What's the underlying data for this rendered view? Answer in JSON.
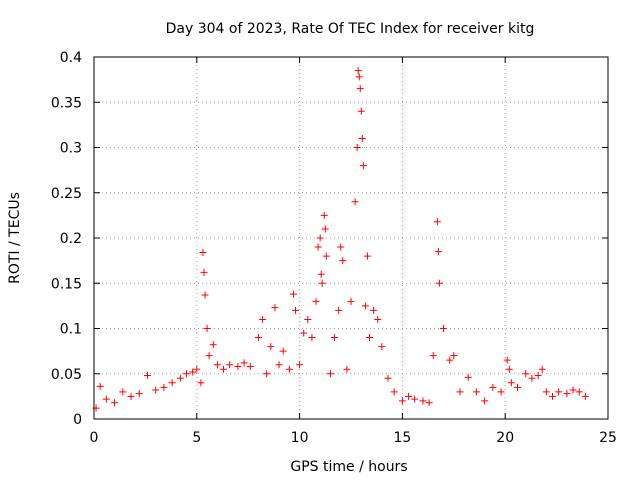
{
  "chart_data": {
    "type": "scatter",
    "title": "Day 304 of 2023, Rate Of TEC Index for receiver kitg",
    "xlabel": "GPS time / hours",
    "ylabel": "ROTI / TECUs",
    "xlim": [
      0,
      25
    ],
    "ylim": [
      0,
      0.4
    ],
    "grid": true,
    "marker": "plus",
    "xticks": [
      "0",
      "5",
      "10",
      "15",
      "20",
      "25"
    ],
    "yticks": [
      "0",
      "0.05",
      "0.1",
      "0.15",
      "0.2",
      "0.25",
      "0.3",
      "0.35",
      "0.4"
    ],
    "colors": {
      "series": "#ff0000",
      "grid": "#a0a0a0",
      "axes": "#000000"
    },
    "series": [
      {
        "name": "ROTI",
        "x": [
          0.1,
          0.3,
          0.6,
          1.0,
          1.4,
          1.8,
          2.2,
          2.6,
          3.0,
          3.4,
          3.8,
          4.2,
          4.5,
          4.8,
          5.0,
          5.2,
          5.3,
          5.35,
          5.4,
          5.5,
          5.6,
          5.8,
          6.0,
          6.3,
          6.6,
          7.0,
          7.3,
          7.6,
          8.0,
          8.2,
          8.4,
          8.6,
          8.8,
          9.0,
          9.2,
          9.5,
          9.7,
          9.8,
          10.0,
          10.2,
          10.4,
          10.6,
          10.8,
          10.9,
          11.0,
          11.05,
          11.1,
          11.2,
          11.25,
          11.3,
          11.5,
          11.7,
          11.9,
          12.0,
          12.1,
          12.3,
          12.5,
          12.7,
          12.8,
          12.85,
          12.9,
          12.95,
          13.0,
          13.05,
          13.1,
          13.2,
          13.3,
          13.4,
          13.6,
          13.8,
          14.0,
          14.3,
          14.6,
          15.0,
          15.3,
          15.6,
          16.0,
          16.3,
          16.5,
          16.7,
          16.75,
          16.8,
          17.0,
          17.3,
          17.5,
          17.8,
          18.2,
          18.6,
          19.0,
          19.4,
          19.8,
          20.1,
          20.2,
          20.3,
          20.6,
          21.0,
          21.3,
          21.6,
          21.8,
          22.0,
          22.3,
          22.6,
          23.0,
          23.3,
          23.6,
          23.9
        ],
        "y": [
          0.012,
          0.036,
          0.022,
          0.018,
          0.03,
          0.025,
          0.028,
          0.048,
          0.032,
          0.035,
          0.04,
          0.045,
          0.05,
          0.052,
          0.055,
          0.04,
          0.184,
          0.162,
          0.137,
          0.1,
          0.07,
          0.082,
          0.06,
          0.055,
          0.06,
          0.058,
          0.062,
          0.058,
          0.09,
          0.11,
          0.05,
          0.08,
          0.123,
          0.06,
          0.075,
          0.055,
          0.138,
          0.12,
          0.06,
          0.095,
          0.11,
          0.09,
          0.13,
          0.19,
          0.2,
          0.16,
          0.15,
          0.225,
          0.21,
          0.18,
          0.05,
          0.09,
          0.12,
          0.19,
          0.175,
          0.055,
          0.13,
          0.24,
          0.3,
          0.385,
          0.378,
          0.365,
          0.34,
          0.31,
          0.28,
          0.125,
          0.18,
          0.09,
          0.12,
          0.11,
          0.08,
          0.045,
          0.03,
          0.02,
          0.025,
          0.022,
          0.02,
          0.018,
          0.07,
          0.218,
          0.185,
          0.15,
          0.1,
          0.065,
          0.07,
          0.03,
          0.046,
          0.03,
          0.02,
          0.035,
          0.03,
          0.065,
          0.055,
          0.04,
          0.035,
          0.05,
          0.045,
          0.048,
          0.055,
          0.03,
          0.025,
          0.03,
          0.028,
          0.032,
          0.03,
          0.025
        ]
      }
    ]
  }
}
